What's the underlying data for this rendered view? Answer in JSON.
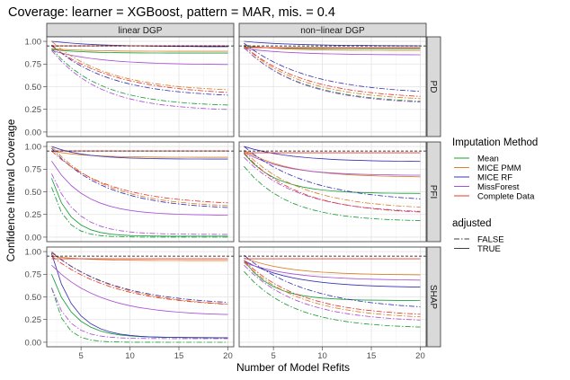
{
  "chart_data": {
    "type": "line",
    "title": "Coverage: learner = XGBoost, pattern = MAR, mis. = 0.4",
    "xlabel": "Number of Model Refits",
    "ylabel": "Confidence Interval Coverage",
    "xlim": [
      1.5,
      20.6
    ],
    "ylim": [
      -0.05,
      1.05
    ],
    "x_ticks": [
      5,
      10,
      15,
      20
    ],
    "y_ticks": [
      "0.00",
      "0.25",
      "0.50",
      "0.75",
      "1.00"
    ],
    "reference_line": 0.95,
    "columns": [
      "linear DGP",
      "non−linear DGP"
    ],
    "rows": [
      "PD",
      "PFI",
      "SHAP"
    ],
    "legend": {
      "imputation_title": "Imputation Method",
      "methods": [
        {
          "name": "Mean",
          "color": "#1b9e3a"
        },
        {
          "name": "MICE PMM",
          "color": "#d9822b"
        },
        {
          "name": "MICE RF",
          "color": "#3a34b5"
        },
        {
          "name": "MissForest",
          "color": "#a94fd6"
        },
        {
          "name": "Complete Data",
          "color": "#e8392a"
        }
      ],
      "adjusted_title": "adjusted",
      "adjusted": [
        {
          "name": "FALSE",
          "dash": "6,2,1.5,2"
        },
        {
          "name": "TRUE",
          "dash": ""
        }
      ]
    },
    "x": [
      2,
      3,
      4,
      5,
      6,
      7,
      8,
      9,
      10,
      11,
      12,
      13,
      14,
      15,
      16,
      17,
      18,
      19,
      20
    ],
    "panels": [
      {
        "row": "PD",
        "col": "linear DGP",
        "series": [
          {
            "method": "Mean",
            "adjusted": "TRUE",
            "start": 0.91,
            "end": 0.87,
            "k": 0.3
          },
          {
            "method": "MICE PMM",
            "adjusted": "TRUE",
            "start": 0.92,
            "end": 0.89,
            "k": 0.3
          },
          {
            "method": "MICE RF",
            "adjusted": "TRUE",
            "start": 1.0,
            "end": 0.94,
            "k": 0.2
          },
          {
            "method": "MissForest",
            "adjusted": "TRUE",
            "start": 0.9,
            "end": 0.74,
            "k": 0.2
          },
          {
            "method": "Complete Data",
            "adjusted": "TRUE",
            "start": 0.95,
            "end": 0.95,
            "k": 0.3
          },
          {
            "method": "Mean",
            "adjusted": "FALSE",
            "start": 0.92,
            "end": 0.28,
            "k": 0.2
          },
          {
            "method": "MICE PMM",
            "adjusted": "FALSE",
            "start": 1.0,
            "end": 0.44,
            "k": 0.17
          },
          {
            "method": "MICE RF",
            "adjusted": "FALSE",
            "start": 0.96,
            "end": 0.38,
            "k": 0.17
          },
          {
            "method": "MissForest",
            "adjusted": "FALSE",
            "start": 0.9,
            "end": 0.23,
            "k": 0.2
          },
          {
            "method": "Complete Data",
            "adjusted": "FALSE",
            "start": 0.95,
            "end": 0.4,
            "k": 0.15
          }
        ]
      },
      {
        "row": "PD",
        "col": "non−linear DGP",
        "series": [
          {
            "method": "Mean",
            "adjusted": "TRUE",
            "start": 0.94,
            "end": 0.92,
            "k": 0.3
          },
          {
            "method": "MICE PMM",
            "adjusted": "TRUE",
            "start": 0.96,
            "end": 0.9,
            "k": 0.3
          },
          {
            "method": "MICE RF",
            "adjusted": "TRUE",
            "start": 1.0,
            "end": 0.95,
            "k": 0.2
          },
          {
            "method": "MissForest",
            "adjusted": "TRUE",
            "start": 0.92,
            "end": 0.85,
            "k": 0.2
          },
          {
            "method": "Complete Data",
            "adjusted": "TRUE",
            "start": 0.93,
            "end": 0.93,
            "k": 0.3
          },
          {
            "method": "Mean",
            "adjusted": "FALSE",
            "start": 0.93,
            "end": 0.31,
            "k": 0.17
          },
          {
            "method": "MICE PMM",
            "adjusted": "FALSE",
            "start": 0.95,
            "end": 0.34,
            "k": 0.17
          },
          {
            "method": "MICE RF",
            "adjusted": "FALSE",
            "start": 0.98,
            "end": 0.41,
            "k": 0.15
          },
          {
            "method": "MissForest",
            "adjusted": "FALSE",
            "start": 0.93,
            "end": 0.3,
            "k": 0.17
          },
          {
            "method": "Complete Data",
            "adjusted": "FALSE",
            "start": 0.95,
            "end": 0.36,
            "k": 0.16
          }
        ]
      },
      {
        "row": "PFI",
        "col": "linear DGP",
        "series": [
          {
            "method": "Mean",
            "adjusted": "TRUE",
            "start": 0.65,
            "end": 0.01,
            "k": 0.55
          },
          {
            "method": "MICE PMM",
            "adjusted": "TRUE",
            "start": 0.95,
            "end": 0.88,
            "k": 0.3
          },
          {
            "method": "MICE RF",
            "adjusted": "TRUE",
            "start": 1.0,
            "end": 0.86,
            "k": 0.3
          },
          {
            "method": "MissForest",
            "adjusted": "TRUE",
            "start": 0.84,
            "end": 0.24,
            "k": 0.3
          },
          {
            "method": "Complete Data",
            "adjusted": "TRUE",
            "start": 0.95,
            "end": 0.95,
            "k": 0.3
          },
          {
            "method": "Mean",
            "adjusted": "FALSE",
            "start": 0.55,
            "end": 0.0,
            "k": 0.7
          },
          {
            "method": "MICE PMM",
            "adjusted": "FALSE",
            "start": 1.0,
            "end": 0.32,
            "k": 0.18
          },
          {
            "method": "MICE RF",
            "adjusted": "FALSE",
            "start": 0.98,
            "end": 0.3,
            "k": 0.18
          },
          {
            "method": "MissForest",
            "adjusted": "FALSE",
            "start": 0.7,
            "end": 0.03,
            "k": 0.4
          },
          {
            "method": "Complete Data",
            "adjusted": "FALSE",
            "start": 0.95,
            "end": 0.35,
            "k": 0.17
          }
        ]
      },
      {
        "row": "PFI",
        "col": "non−linear DGP",
        "series": [
          {
            "method": "Mean",
            "adjusted": "TRUE",
            "start": 0.92,
            "end": 0.48,
            "k": 0.3
          },
          {
            "method": "MICE PMM",
            "adjusted": "TRUE",
            "start": 0.96,
            "end": 0.66,
            "k": 0.22
          },
          {
            "method": "MICE RF",
            "adjusted": "TRUE",
            "start": 1.0,
            "end": 0.83,
            "k": 0.2
          },
          {
            "method": "MissForest",
            "adjusted": "TRUE",
            "start": 0.94,
            "end": 0.68,
            "k": 0.25
          },
          {
            "method": "Complete Data",
            "adjusted": "TRUE",
            "start": 0.93,
            "end": 0.93,
            "k": 0.3
          },
          {
            "method": "Mean",
            "adjusted": "FALSE",
            "start": 0.78,
            "end": 0.17,
            "k": 0.22
          },
          {
            "method": "MICE PMM",
            "adjusted": "FALSE",
            "start": 0.95,
            "end": 0.3,
            "k": 0.17
          },
          {
            "method": "MICE RF",
            "adjusted": "FALSE",
            "start": 1.0,
            "end": 0.38,
            "k": 0.15
          },
          {
            "method": "MissForest",
            "adjusted": "FALSE",
            "start": 0.88,
            "end": 0.26,
            "k": 0.18
          },
          {
            "method": "Complete Data",
            "adjusted": "FALSE",
            "start": 0.93,
            "end": 0.25,
            "k": 0.18
          }
        ]
      },
      {
        "row": "SHAP",
        "col": "linear DGP",
        "series": [
          {
            "method": "Mean",
            "adjusted": "TRUE",
            "start": 0.75,
            "end": 0.05,
            "k": 0.45
          },
          {
            "method": "MICE PMM",
            "adjusted": "TRUE",
            "start": 0.95,
            "end": 0.9,
            "k": 0.3
          },
          {
            "method": "MICE RF",
            "adjusted": "TRUE",
            "start": 0.98,
            "end": 0.05,
            "k": 0.45
          },
          {
            "method": "MissForest",
            "adjusted": "TRUE",
            "start": 0.85,
            "end": 0.29,
            "k": 0.2
          },
          {
            "method": "Complete Data",
            "adjusted": "TRUE",
            "start": 0.92,
            "end": 0.92,
            "k": 0.3
          },
          {
            "method": "Mean",
            "adjusted": "FALSE",
            "start": 0.6,
            "end": 0.0,
            "k": 0.8
          },
          {
            "method": "MICE PMM",
            "adjusted": "FALSE",
            "start": 1.0,
            "end": 0.38,
            "k": 0.15
          },
          {
            "method": "MICE RF",
            "adjusted": "FALSE",
            "start": 0.99,
            "end": 0.4,
            "k": 0.15
          },
          {
            "method": "MissForest",
            "adjusted": "FALSE",
            "start": 0.6,
            "end": 0.04,
            "k": 0.6
          },
          {
            "method": "Complete Data",
            "adjusted": "FALSE",
            "start": 0.95,
            "end": 0.38,
            "k": 0.15
          }
        ]
      },
      {
        "row": "SHAP",
        "col": "non−linear DGP",
        "series": [
          {
            "method": "Mean",
            "adjusted": "TRUE",
            "start": 0.9,
            "end": 0.46,
            "k": 0.35
          },
          {
            "method": "MICE PMM",
            "adjusted": "TRUE",
            "start": 0.93,
            "end": 0.74,
            "k": 0.22
          },
          {
            "method": "MICE RF",
            "adjusted": "TRUE",
            "start": 0.9,
            "end": 0.6,
            "k": 0.2
          },
          {
            "method": "MissForest",
            "adjusted": "TRUE",
            "start": 0.88,
            "end": 0.68,
            "k": 0.2
          },
          {
            "method": "Complete Data",
            "adjusted": "TRUE",
            "start": 0.92,
            "end": 0.92,
            "k": 0.3
          },
          {
            "method": "Mean",
            "adjusted": "FALSE",
            "start": 0.78,
            "end": 0.15,
            "k": 0.2
          },
          {
            "method": "MICE PMM",
            "adjusted": "FALSE",
            "start": 0.88,
            "end": 0.25,
            "k": 0.17
          },
          {
            "method": "MICE RF",
            "adjusted": "FALSE",
            "start": 0.96,
            "end": 0.35,
            "k": 0.15
          },
          {
            "method": "MissForest",
            "adjusted": "FALSE",
            "start": 0.85,
            "end": 0.22,
            "k": 0.18
          },
          {
            "method": "Complete Data",
            "adjusted": "FALSE",
            "start": 0.9,
            "end": 0.28,
            "k": 0.17
          }
        ]
      }
    ]
  }
}
